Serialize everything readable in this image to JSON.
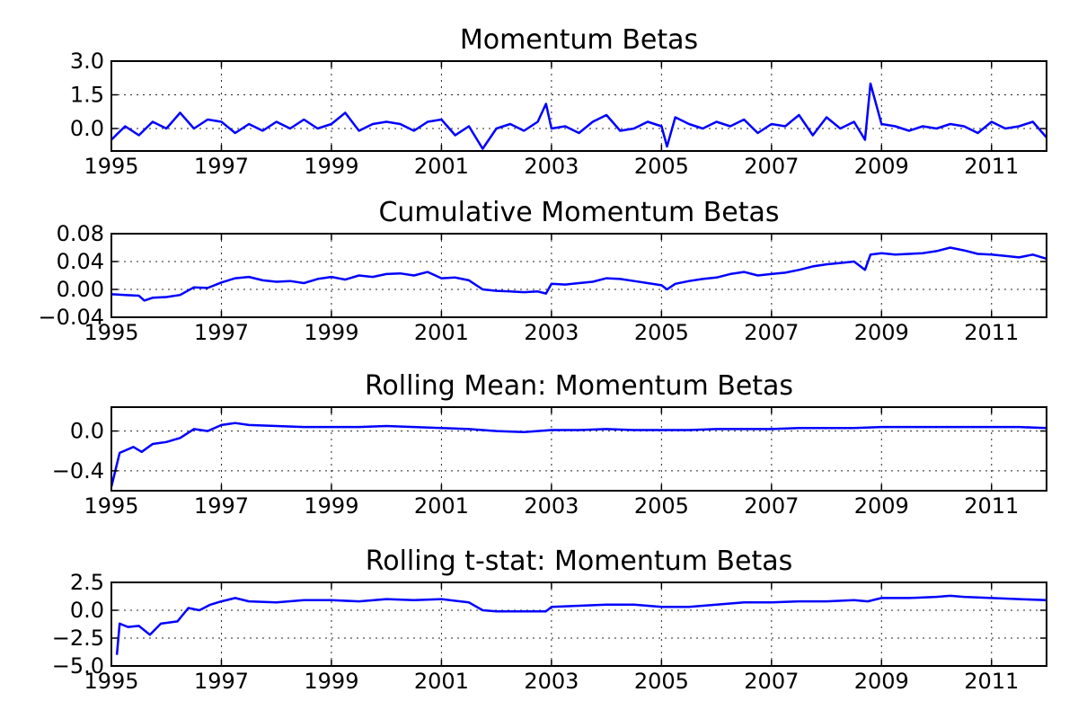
{
  "chart_data": [
    {
      "type": "line",
      "title": "Momentum Betas",
      "xlim": [
        1995,
        2012
      ],
      "ylim": [
        -1.0,
        3.0
      ],
      "yticks": [
        3.0,
        1.5,
        0.0
      ],
      "ytick_labels": [
        "3.0",
        "1.5",
        "0.0"
      ],
      "xticks": [
        1995,
        1997,
        1999,
        2001,
        2003,
        2005,
        2007,
        2009,
        2011
      ],
      "xtick_labels": [
        "1995",
        "1997",
        "1999",
        "2001",
        "2003",
        "2005",
        "2007",
        "2009",
        "2011"
      ],
      "grid": true,
      "color": "#0000ff",
      "x": [
        1995.0,
        1995.25,
        1995.5,
        1995.75,
        1996.0,
        1996.25,
        1996.5,
        1996.75,
        1997.0,
        1997.25,
        1997.5,
        1997.75,
        1998.0,
        1998.25,
        1998.5,
        1998.75,
        1999.0,
        1999.25,
        1999.5,
        1999.75,
        2000.0,
        2000.25,
        2000.5,
        2000.75,
        2001.0,
        2001.25,
        2001.5,
        2001.75,
        2002.0,
        2002.25,
        2002.5,
        2002.75,
        2002.9,
        2003.0,
        2003.25,
        2003.5,
        2003.75,
        2004.0,
        2004.25,
        2004.5,
        2004.75,
        2005.0,
        2005.1,
        2005.25,
        2005.5,
        2005.75,
        2006.0,
        2006.25,
        2006.5,
        2006.75,
        2007.0,
        2007.25,
        2007.5,
        2007.75,
        2008.0,
        2008.25,
        2008.5,
        2008.7,
        2008.8,
        2009.0,
        2009.25,
        2009.5,
        2009.75,
        2010.0,
        2010.25,
        2010.5,
        2010.75,
        2011.0,
        2011.25,
        2011.5,
        2011.75,
        2012.0
      ],
      "y": [
        -0.5,
        0.1,
        -0.3,
        0.3,
        0.0,
        0.7,
        0.0,
        0.4,
        0.3,
        -0.2,
        0.2,
        -0.1,
        0.3,
        0.0,
        0.4,
        0.0,
        0.2,
        0.7,
        -0.1,
        0.2,
        0.3,
        0.2,
        -0.1,
        0.3,
        0.4,
        -0.3,
        0.1,
        -0.9,
        0.0,
        0.2,
        -0.1,
        0.3,
        1.1,
        0.0,
        0.1,
        -0.2,
        0.3,
        0.6,
        -0.1,
        0.0,
        0.3,
        0.1,
        -0.8,
        0.5,
        0.2,
        0.0,
        0.3,
        0.1,
        0.4,
        -0.2,
        0.2,
        0.1,
        0.6,
        -0.3,
        0.5,
        0.0,
        0.3,
        -0.5,
        2.0,
        0.2,
        0.1,
        -0.1,
        0.1,
        0.0,
        0.2,
        0.1,
        -0.2,
        0.3,
        0.0,
        0.1,
        0.3,
        -0.4
      ]
    },
    {
      "type": "line",
      "title": "Cumulative Momentum Betas",
      "xlim": [
        1995,
        2012
      ],
      "ylim": [
        -0.04,
        0.08
      ],
      "yticks": [
        0.08,
        0.04,
        0.0,
        -0.04
      ],
      "ytick_labels": [
        "0.08",
        "0.04",
        "0.00",
        "−0.04"
      ],
      "xticks": [
        1995,
        1997,
        1999,
        2001,
        2003,
        2005,
        2007,
        2009,
        2011
      ],
      "xtick_labels": [
        "1995",
        "1997",
        "1999",
        "2001",
        "2003",
        "2005",
        "2007",
        "2009",
        "2011"
      ],
      "grid": true,
      "color": "#0000ff",
      "x": [
        1995.0,
        1995.25,
        1995.5,
        1995.6,
        1995.75,
        1996.0,
        1996.25,
        1996.5,
        1996.75,
        1997.0,
        1997.25,
        1997.5,
        1997.75,
        1998.0,
        1998.25,
        1998.5,
        1998.75,
        1999.0,
        1999.25,
        1999.5,
        1999.75,
        2000.0,
        2000.25,
        2000.5,
        2000.75,
        2001.0,
        2001.25,
        2001.5,
        2001.75,
        2002.0,
        2002.25,
        2002.5,
        2002.75,
        2002.9,
        2003.0,
        2003.25,
        2003.5,
        2003.75,
        2004.0,
        2004.25,
        2004.5,
        2004.75,
        2005.0,
        2005.1,
        2005.25,
        2005.5,
        2005.75,
        2006.0,
        2006.25,
        2006.5,
        2006.75,
        2007.0,
        2007.25,
        2007.5,
        2007.75,
        2008.0,
        2008.25,
        2008.5,
        2008.7,
        2008.8,
        2009.0,
        2009.25,
        2009.5,
        2009.75,
        2010.0,
        2010.25,
        2010.5,
        2010.75,
        2011.0,
        2011.25,
        2011.5,
        2011.75,
        2012.0
      ],
      "y": [
        -0.007,
        -0.008,
        -0.009,
        -0.016,
        -0.012,
        -0.011,
        -0.008,
        0.003,
        0.002,
        0.01,
        0.016,
        0.018,
        0.013,
        0.011,
        0.012,
        0.009,
        0.015,
        0.018,
        0.014,
        0.02,
        0.018,
        0.022,
        0.023,
        0.02,
        0.025,
        0.016,
        0.017,
        0.013,
        0.0,
        -0.002,
        -0.003,
        -0.004,
        -0.003,
        -0.006,
        0.008,
        0.007,
        0.009,
        0.011,
        0.016,
        0.015,
        0.012,
        0.009,
        0.006,
        0.0,
        0.008,
        0.012,
        0.015,
        0.017,
        0.022,
        0.025,
        0.02,
        0.022,
        0.024,
        0.028,
        0.033,
        0.036,
        0.038,
        0.04,
        0.028,
        0.05,
        0.052,
        0.05,
        0.051,
        0.052,
        0.055,
        0.06,
        0.056,
        0.051,
        0.05,
        0.048,
        0.046,
        0.05,
        0.044
      ]
    },
    {
      "type": "line",
      "title": "Rolling Mean: Momentum Betas",
      "xlim": [
        1995,
        2012
      ],
      "ylim": [
        -0.6,
        0.24
      ],
      "yticks": [
        0.0,
        -0.4
      ],
      "ytick_labels": [
        "0.0",
        "−0.4"
      ],
      "xticks": [
        1995,
        1997,
        1999,
        2001,
        2003,
        2005,
        2007,
        2009,
        2011
      ],
      "xtick_labels": [
        "1995",
        "1997",
        "1999",
        "2001",
        "2003",
        "2005",
        "2007",
        "2009",
        "2011"
      ],
      "grid": true,
      "color": "#0000ff",
      "x": [
        1995.0,
        1995.15,
        1995.4,
        1995.55,
        1995.75,
        1996.0,
        1996.25,
        1996.5,
        1996.75,
        1997.0,
        1997.25,
        1997.5,
        1998.0,
        1998.5,
        1999.0,
        1999.5,
        2000.0,
        2000.5,
        2001.0,
        2001.5,
        2002.0,
        2002.5,
        2003.0,
        2003.5,
        2004.0,
        2004.5,
        2005.0,
        2005.5,
        2006.0,
        2006.5,
        2007.0,
        2007.5,
        2008.0,
        2008.5,
        2009.0,
        2009.5,
        2010.0,
        2010.5,
        2011.0,
        2011.5,
        2012.0
      ],
      "y": [
        -0.56,
        -0.22,
        -0.16,
        -0.21,
        -0.13,
        -0.11,
        -0.07,
        0.02,
        0.0,
        0.06,
        0.08,
        0.06,
        0.05,
        0.04,
        0.04,
        0.04,
        0.05,
        0.04,
        0.03,
        0.02,
        0.0,
        -0.01,
        0.01,
        0.01,
        0.02,
        0.01,
        0.01,
        0.01,
        0.02,
        0.02,
        0.02,
        0.03,
        0.03,
        0.03,
        0.04,
        0.04,
        0.04,
        0.04,
        0.04,
        0.04,
        0.03
      ]
    },
    {
      "type": "line",
      "title": "Rolling t-stat: Momentum Betas",
      "xlim": [
        1995,
        2012
      ],
      "ylim": [
        -5.0,
        2.5
      ],
      "yticks": [
        2.5,
        0.0,
        -2.5,
        -5.0
      ],
      "ytick_labels": [
        "2.5",
        "0.0",
        "−2.5",
        "−5.0"
      ],
      "xticks": [
        1995,
        1997,
        1999,
        2001,
        2003,
        2005,
        2007,
        2009,
        2011
      ],
      "xtick_labels": [
        "1995",
        "1997",
        "1999",
        "2001",
        "2003",
        "2005",
        "2007",
        "2009",
        "2011"
      ],
      "grid": true,
      "color": "#0000ff",
      "x": [
        1995.1,
        1995.15,
        1995.3,
        1995.5,
        1995.7,
        1995.9,
        1996.2,
        1996.4,
        1996.6,
        1996.8,
        1997.0,
        1997.25,
        1997.5,
        1998.0,
        1998.5,
        1999.0,
        1999.5,
        2000.0,
        2000.5,
        2001.0,
        2001.5,
        2001.75,
        2002.0,
        2002.5,
        2002.9,
        2003.0,
        2003.5,
        2004.0,
        2004.5,
        2005.0,
        2005.5,
        2006.0,
        2006.5,
        2007.0,
        2007.5,
        2008.0,
        2008.5,
        2008.75,
        2009.0,
        2009.5,
        2010.0,
        2010.25,
        2010.5,
        2011.0,
        2011.5,
        2012.0
      ],
      "y": [
        -4.0,
        -1.2,
        -1.5,
        -1.4,
        -2.2,
        -1.2,
        -1.0,
        0.2,
        0.0,
        0.5,
        0.8,
        1.1,
        0.8,
        0.7,
        0.9,
        0.9,
        0.8,
        1.0,
        0.9,
        1.0,
        0.7,
        0.0,
        -0.1,
        -0.1,
        -0.1,
        0.3,
        0.4,
        0.5,
        0.5,
        0.3,
        0.3,
        0.5,
        0.7,
        0.7,
        0.8,
        0.8,
        0.9,
        0.8,
        1.1,
        1.1,
        1.2,
        1.3,
        1.2,
        1.1,
        1.0,
        0.9
      ]
    }
  ]
}
